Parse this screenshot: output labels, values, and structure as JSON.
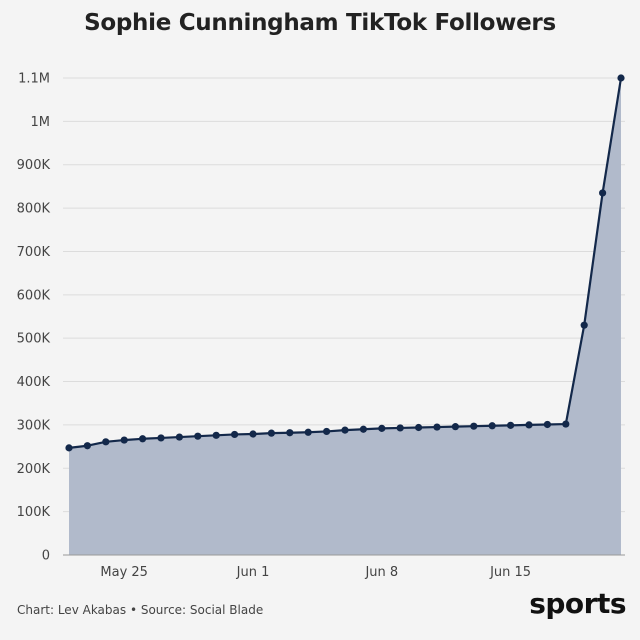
{
  "title": "Sophie Cunningham TikTok Followers",
  "footer": "Chart: Lev Akabas • Source: Social Blade",
  "brand": "sports",
  "colors": {
    "line": "#13284a",
    "area": "#b1bacb",
    "grid": "#dcdcdc",
    "text": "#444444"
  },
  "chart_data": {
    "type": "area",
    "title": "Sophie Cunningham TikTok Followers",
    "xlabel": "",
    "ylabel": "",
    "ylim": [
      0,
      1100000
    ],
    "yticks": [
      {
        "value": 0,
        "label": "0"
      },
      {
        "value": 100000,
        "label": "100K"
      },
      {
        "value": 200000,
        "label": "200K"
      },
      {
        "value": 300000,
        "label": "300K"
      },
      {
        "value": 400000,
        "label": "400K"
      },
      {
        "value": 500000,
        "label": "500K"
      },
      {
        "value": 600000,
        "label": "600K"
      },
      {
        "value": 700000,
        "label": "700K"
      },
      {
        "value": 800000,
        "label": "800K"
      },
      {
        "value": 900000,
        "label": "900K"
      },
      {
        "value": 1000000,
        "label": "1M"
      },
      {
        "value": 1100000,
        "label": "1.1M"
      }
    ],
    "xticks": [
      {
        "date": "May 25",
        "label": "May 25"
      },
      {
        "date": "Jun 1",
        "label": "Jun 1"
      },
      {
        "date": "Jun 8",
        "label": "Jun 8"
      },
      {
        "date": "Jun 15",
        "label": "Jun 15"
      }
    ],
    "grid": true,
    "x": [
      "May 22",
      "May 23",
      "May 24",
      "May 25",
      "May 26",
      "May 27",
      "May 28",
      "May 29",
      "May 30",
      "May 31",
      "Jun 1",
      "Jun 2",
      "Jun 3",
      "Jun 4",
      "Jun 5",
      "Jun 6",
      "Jun 7",
      "Jun 8",
      "Jun 9",
      "Jun 10",
      "Jun 11",
      "Jun 12",
      "Jun 13",
      "Jun 14",
      "Jun 15",
      "Jun 16",
      "Jun 17",
      "Jun 18",
      "Jun 19",
      "Jun 20",
      "Jun 21"
    ],
    "values": [
      247000,
      252000,
      261000,
      265000,
      268000,
      270000,
      272000,
      274000,
      276000,
      278000,
      279000,
      281000,
      282000,
      283000,
      285000,
      288000,
      290000,
      292000,
      293000,
      294000,
      295000,
      296000,
      297000,
      298000,
      299000,
      300000,
      301000,
      302000,
      530000,
      835000,
      1100000
    ]
  }
}
